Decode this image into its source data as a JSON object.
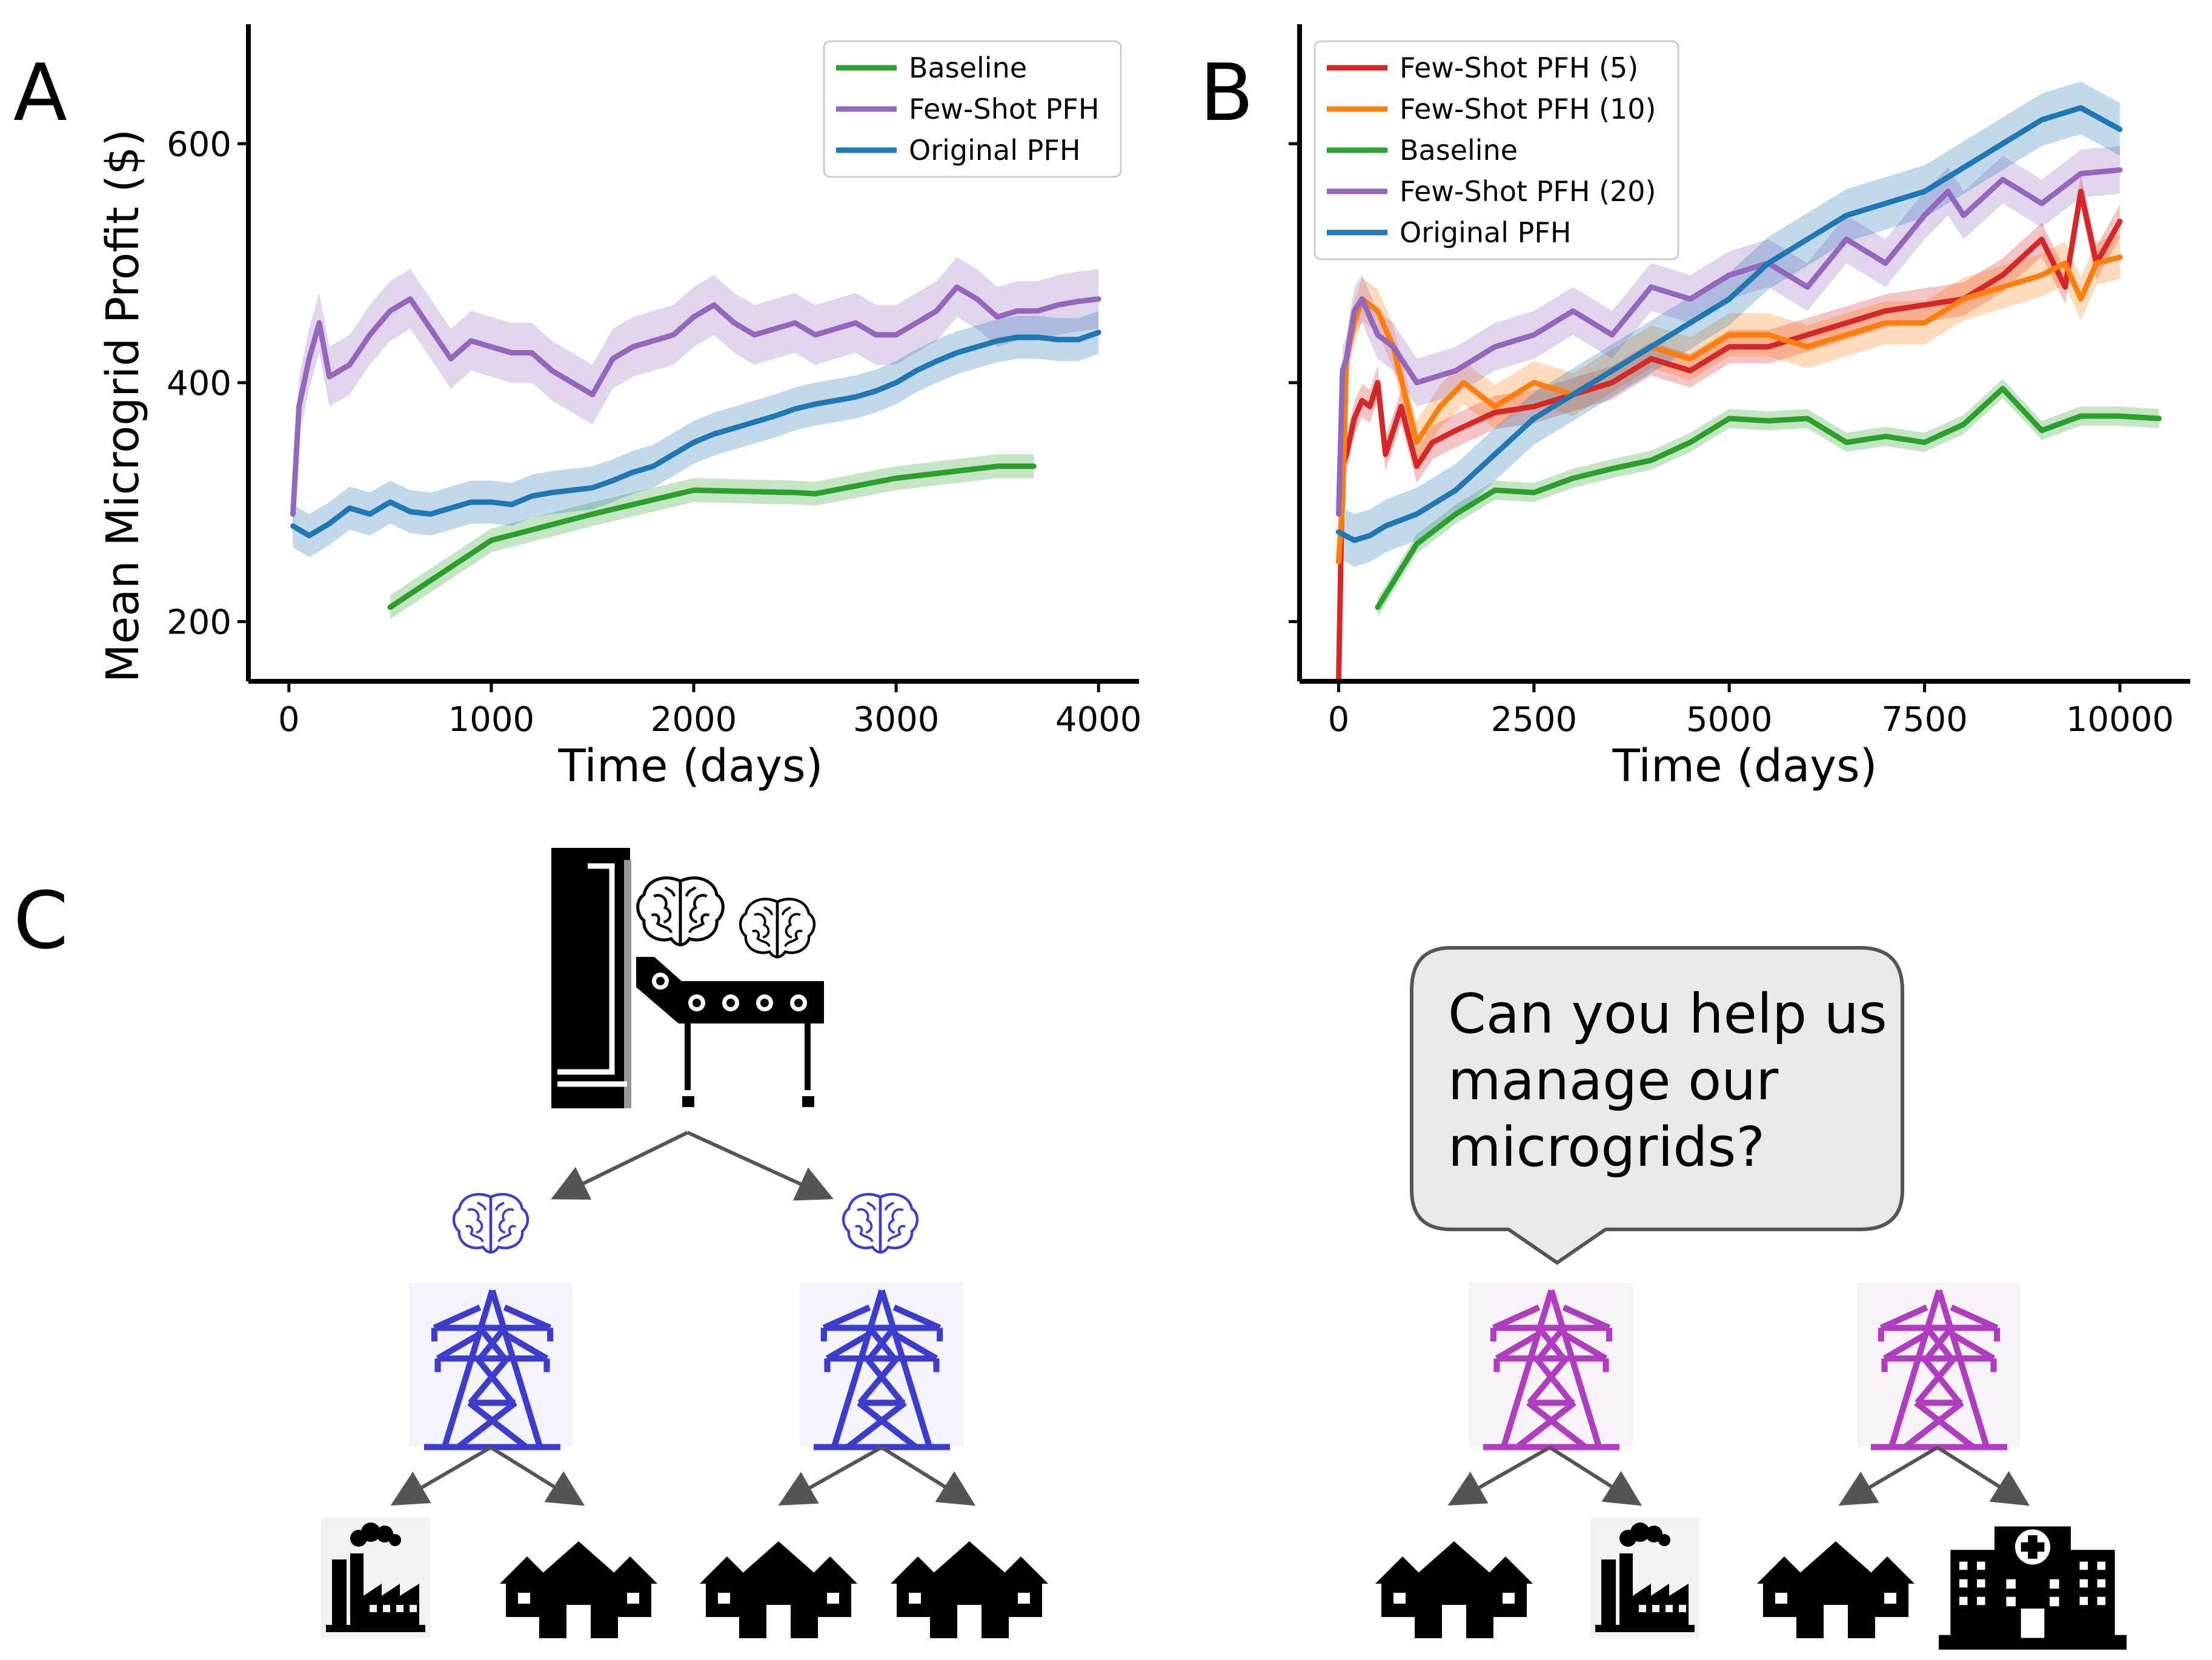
{
  "panels": {
    "a": "A",
    "b": "B",
    "c": "C"
  },
  "chart_data": [
    {
      "type": "line",
      "panel": "A",
      "xlabel": "Time (days)",
      "ylabel": "Mean Microgrid Profit ($)",
      "xlim": [
        -200,
        4200
      ],
      "ylim": [
        150,
        700
      ],
      "xticks": [
        0,
        1000,
        2000,
        3000,
        4000
      ],
      "yticks": [
        200,
        400,
        600
      ],
      "legend_position": "top-right",
      "series": [
        {
          "name": "Baseline",
          "color": "#2ca02c",
          "x": [
            500,
            1000,
            1500,
            2000,
            2500,
            2600,
            3000,
            3500,
            3680
          ],
          "y": [
            212,
            268,
            290,
            310,
            308,
            307,
            320,
            330,
            330
          ],
          "band": 10
        },
        {
          "name": "Few-Shot PFH",
          "color": "#9467bd",
          "x": [
            20,
            50,
            100,
            150,
            200,
            300,
            400,
            500,
            600,
            700,
            800,
            900,
            1000,
            1100,
            1200,
            1300,
            1400,
            1500,
            1600,
            1700,
            1800,
            1900,
            2000,
            2100,
            2200,
            2300,
            2400,
            2500,
            2600,
            2700,
            2800,
            2900,
            3000,
            3100,
            3200,
            3300,
            3400,
            3500,
            3600,
            3700,
            3800,
            3900,
            4000
          ],
          "y": [
            290,
            380,
            420,
            450,
            405,
            415,
            440,
            460,
            470,
            445,
            420,
            435,
            430,
            425,
            425,
            410,
            400,
            390,
            420,
            430,
            435,
            440,
            455,
            465,
            450,
            440,
            445,
            450,
            440,
            445,
            450,
            440,
            440,
            450,
            460,
            480,
            470,
            455,
            460,
            460,
            465,
            468,
            470
          ],
          "band": 25
        },
        {
          "name": "Original PFH",
          "color": "#1f77b4",
          "x": [
            20,
            100,
            200,
            300,
            400,
            500,
            600,
            700,
            800,
            900,
            1000,
            1100,
            1200,
            1300,
            1400,
            1500,
            1600,
            1700,
            1800,
            1900,
            2000,
            2100,
            2200,
            2300,
            2400,
            2500,
            2600,
            2700,
            2800,
            2900,
            3000,
            3100,
            3200,
            3300,
            3400,
            3500,
            3600,
            3700,
            3800,
            3900,
            4000
          ],
          "y": [
            280,
            272,
            282,
            295,
            290,
            300,
            292,
            290,
            295,
            300,
            300,
            298,
            305,
            308,
            310,
            312,
            318,
            325,
            330,
            340,
            350,
            357,
            362,
            367,
            372,
            378,
            382,
            385,
            388,
            393,
            400,
            410,
            418,
            425,
            430,
            435,
            438,
            438,
            436,
            436,
            442
          ],
          "band": 18
        }
      ]
    },
    {
      "type": "line",
      "panel": "B",
      "xlabel": "Time (days)",
      "ylabel": "",
      "xlim": [
        -500,
        10900
      ],
      "ylim": [
        150,
        700
      ],
      "xticks": [
        0,
        2500,
        5000,
        7500,
        10000
      ],
      "yticks": [
        200,
        400,
        600
      ],
      "legend_position": "top-left",
      "series": [
        {
          "name": "Few-Shot PFH (5)",
          "color": "#d62728",
          "x": [
            0,
            50,
            100,
            200,
            300,
            400,
            500,
            600,
            800,
            1000,
            1200,
            1500,
            2000,
            2500,
            3000,
            3500,
            4000,
            4500,
            5000,
            5500,
            6000,
            6500,
            7000,
            7500,
            8000,
            8500,
            9000,
            9300,
            9500,
            9700,
            10000
          ],
          "y": [
            150,
            330,
            340,
            370,
            385,
            380,
            400,
            340,
            380,
            330,
            350,
            360,
            375,
            380,
            390,
            400,
            420,
            410,
            430,
            430,
            440,
            450,
            460,
            465,
            470,
            490,
            520,
            480,
            560,
            500,
            535
          ],
          "band": 14
        },
        {
          "name": "Few-Shot PFH (10)",
          "color": "#ff7f0e",
          "x": [
            0,
            50,
            100,
            200,
            300,
            500,
            700,
            1000,
            1300,
            1600,
            2000,
            2500,
            3000,
            3500,
            4000,
            4500,
            5000,
            5500,
            6000,
            6500,
            7000,
            7500,
            8000,
            8500,
            9000,
            9300,
            9500,
            9700,
            10000
          ],
          "y": [
            250,
            300,
            420,
            450,
            470,
            460,
            430,
            350,
            380,
            400,
            380,
            400,
            390,
            410,
            430,
            420,
            440,
            440,
            430,
            440,
            450,
            450,
            470,
            480,
            490,
            500,
            470,
            500,
            505
          ],
          "band": 18
        },
        {
          "name": "Baseline",
          "color": "#2ca02c",
          "x": [
            500,
            1000,
            1500,
            2000,
            2500,
            3000,
            3500,
            4000,
            4500,
            5000,
            5500,
            6000,
            6500,
            7000,
            7500,
            8000,
            8500,
            9000,
            9500,
            10000,
            10500
          ],
          "y": [
            212,
            265,
            290,
            310,
            308,
            320,
            328,
            335,
            350,
            370,
            368,
            370,
            350,
            355,
            350,
            365,
            395,
            360,
            372,
            372,
            370
          ],
          "band": 8
        },
        {
          "name": "Few-Shot PFH (20)",
          "color": "#9467bd",
          "x": [
            0,
            50,
            100,
            200,
            300,
            500,
            700,
            1000,
            1500,
            2000,
            2500,
            3000,
            3500,
            4000,
            4500,
            5000,
            5500,
            6000,
            6500,
            7000,
            7500,
            7800,
            8000,
            8500,
            9000,
            9500,
            10000
          ],
          "y": [
            290,
            410,
            420,
            460,
            470,
            440,
            430,
            400,
            410,
            430,
            440,
            460,
            440,
            480,
            470,
            490,
            500,
            480,
            520,
            500,
            540,
            560,
            540,
            570,
            550,
            575,
            578
          ],
          "band": 20
        },
        {
          "name": "Original PFH",
          "color": "#1f77b4",
          "x": [
            0,
            200,
            400,
            600,
            800,
            1000,
            1500,
            2000,
            2500,
            3000,
            3500,
            4000,
            4500,
            5000,
            5500,
            6000,
            6500,
            7000,
            7500,
            8000,
            8500,
            9000,
            9500,
            10000
          ],
          "y": [
            275,
            268,
            272,
            280,
            285,
            290,
            310,
            340,
            370,
            390,
            410,
            430,
            450,
            470,
            500,
            520,
            540,
            550,
            560,
            580,
            600,
            620,
            630,
            612
          ],
          "band": 22
        }
      ]
    }
  ],
  "diagram": {
    "bubble_lines": [
      "Can you help us",
      "manage our",
      "microgrids?"
    ],
    "colors": {
      "managed_tower": "#3c3ccf",
      "new_tower": "#b03cbf",
      "arrow": "#555555",
      "icon": "#000000"
    }
  }
}
